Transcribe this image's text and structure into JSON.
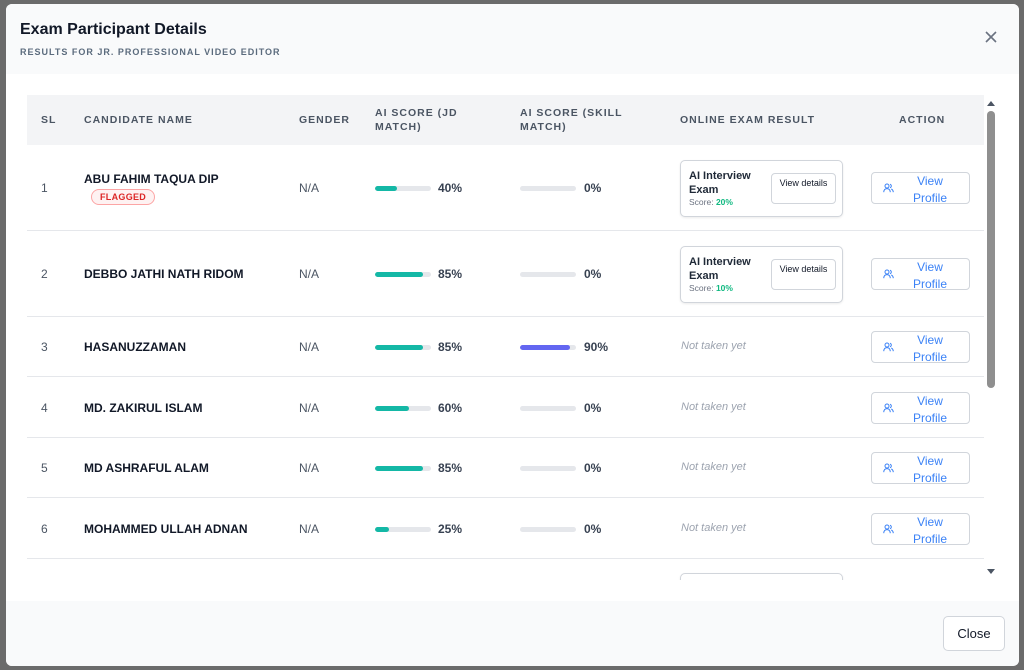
{
  "modal": {
    "title": "Exam Participant Details",
    "subtitle": "RESULTS FOR JR. PROFESSIONAL VIDEO EDITOR"
  },
  "table": {
    "headers": {
      "sl": "SL",
      "name": "CANDIDATE NAME",
      "gender": "GENDER",
      "ai_jd": "AI SCORE (JD MATCH)",
      "ai_skill": "AI SCORE (SKILL MATCH)",
      "online_exam": "ONLINE EXAM RESULT",
      "action": "ACTION"
    },
    "rows": [
      {
        "sl": "1",
        "name": "ABU FAHIM TAQUA DIP",
        "flag": "FLAGGED",
        "gender": "N/A",
        "jd_pct": 40,
        "jd_label": "40%",
        "skill_pct": 0,
        "skill_label": "0%",
        "exam": {
          "title": "AI Interview Exam",
          "score_label": "Score:",
          "score": "20%",
          "button": "View details"
        },
        "action": "View Profile"
      },
      {
        "sl": "2",
        "name": "DEBBO JATHI NATH RIDOM",
        "gender": "N/A",
        "jd_pct": 85,
        "jd_label": "85%",
        "skill_pct": 0,
        "skill_label": "0%",
        "exam": {
          "title": "AI Interview Exam",
          "score_label": "Score:",
          "score": "10%",
          "button": "View details"
        },
        "action": "View Profile"
      },
      {
        "sl": "3",
        "name": "HASANUZZAMAN",
        "gender": "N/A",
        "jd_pct": 85,
        "jd_label": "85%",
        "skill_pct": 90,
        "skill_label": "90%",
        "exam_status": "Not taken yet",
        "action": "View Profile"
      },
      {
        "sl": "4",
        "name": "MD. ZAKIRUL ISLAM",
        "gender": "N/A",
        "jd_pct": 60,
        "jd_label": "60%",
        "skill_pct": 0,
        "skill_label": "0%",
        "exam_status": "Not taken yet",
        "action": "View Profile"
      },
      {
        "sl": "5",
        "name": "MD ASHRAFUL ALAM",
        "gender": "N/A",
        "jd_pct": 85,
        "jd_label": "85%",
        "skill_pct": 0,
        "skill_label": "0%",
        "exam_status": "Not taken yet",
        "action": "View Profile"
      },
      {
        "sl": "6",
        "name": "MOHAMMED ULLAH ADNAN",
        "gender": "N/A",
        "jd_pct": 25,
        "jd_label": "25%",
        "skill_pct": 0,
        "skill_label": "0%",
        "exam_status": "Not taken yet",
        "action": "View Profile"
      }
    ]
  },
  "footer": {
    "close_label": "Close"
  },
  "colors": {
    "jd_bar": "#14b8a6",
    "skill_bar": "#6366f1",
    "track": "#e5e7eb",
    "link": "#3b82f6",
    "flag": "#dc2626"
  },
  "icons": {
    "close": "close-icon",
    "profile": "users-icon"
  }
}
